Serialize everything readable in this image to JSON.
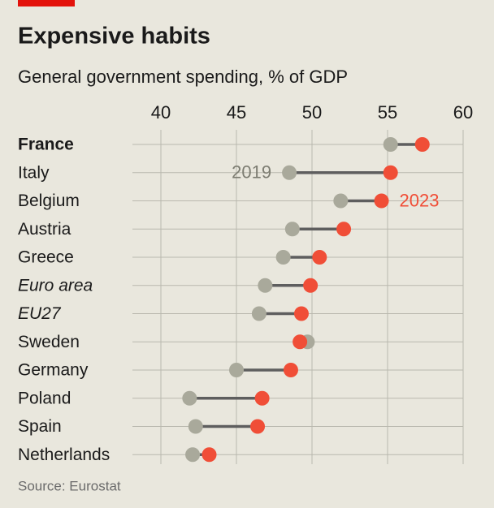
{
  "chart_data": {
    "type": "dumbbell",
    "title": "Expensive habits",
    "subtitle": "General government spending, % of GDP",
    "source": "Source: Eurostat",
    "categories": [
      "France",
      "Italy",
      "Belgium",
      "Austria",
      "Greece",
      "Euro area",
      "EU27",
      "Sweden",
      "Germany",
      "Poland",
      "Spain",
      "Netherlands"
    ],
    "category_font": [
      "bold",
      "normal",
      "normal",
      "normal",
      "normal",
      "italic",
      "italic",
      "normal",
      "normal",
      "normal",
      "normal",
      "normal"
    ],
    "series": [
      {
        "name": "2019",
        "color": "#a9a99b",
        "label_at": 1,
        "values": [
          55.2,
          48.5,
          51.9,
          48.7,
          48.1,
          46.9,
          46.5,
          49.7,
          45.0,
          41.9,
          42.3,
          42.1
        ]
      },
      {
        "name": "2023",
        "color": "#f04e37",
        "label_at": 2,
        "values": [
          57.3,
          55.2,
          54.6,
          52.1,
          50.5,
          49.9,
          49.3,
          49.2,
          48.6,
          46.7,
          46.4,
          43.2
        ]
      }
    ],
    "xlim": [
      40,
      60
    ],
    "xticks": [
      40,
      45,
      50,
      55,
      60
    ],
    "grid": true
  }
}
